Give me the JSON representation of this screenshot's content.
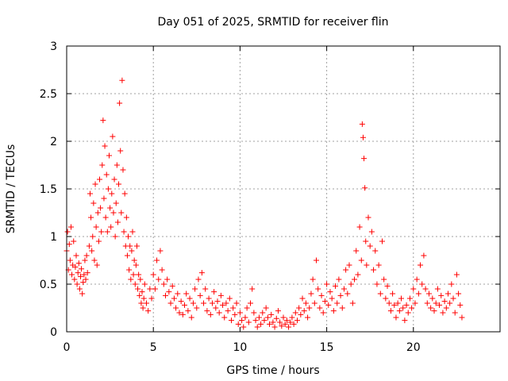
{
  "chart_data": {
    "type": "scatter",
    "title": "Day 051 of 2025, SRMTID for receiver flin",
    "xlabel": "GPS time / hours",
    "ylabel": "SRMTID / TECUs",
    "xlim": [
      0,
      25
    ],
    "ylim": [
      0,
      3
    ],
    "xticks": [
      0,
      5,
      10,
      15,
      20
    ],
    "yticks": [
      0,
      0.5,
      1,
      1.5,
      2,
      2.5,
      3
    ],
    "xtick_labels": [
      "0",
      "5",
      "10",
      "15",
      "20"
    ],
    "ytick_labels": [
      "0",
      "0.5",
      "1",
      "1.5",
      "2",
      "2.5",
      "3"
    ],
    "grid": true,
    "marker": "+",
    "color": "#ff0000",
    "series": [
      {
        "name": "SRMTID",
        "points": [
          [
            0.0,
            0.85
          ],
          [
            0.05,
            1.05
          ],
          [
            0.1,
            0.65
          ],
          [
            0.15,
            0.92
          ],
          [
            0.2,
            0.75
          ],
          [
            0.25,
            1.1
          ],
          [
            0.3,
            0.6
          ],
          [
            0.35,
            0.7
          ],
          [
            0.4,
            0.95
          ],
          [
            0.45,
            0.55
          ],
          [
            0.5,
            0.68
          ],
          [
            0.55,
            0.8
          ],
          [
            0.6,
            0.5
          ],
          [
            0.65,
            0.62
          ],
          [
            0.7,
            0.72
          ],
          [
            0.75,
            0.45
          ],
          [
            0.8,
            0.58
          ],
          [
            0.85,
            0.66
          ],
          [
            0.9,
            0.4
          ],
          [
            0.95,
            0.52
          ],
          [
            1.0,
            0.6
          ],
          [
            1.05,
            0.75
          ],
          [
            1.1,
            0.55
          ],
          [
            1.15,
            0.8
          ],
          [
            1.2,
            0.62
          ],
          [
            1.3,
            0.9
          ],
          [
            1.35,
            1.45
          ],
          [
            1.4,
            1.2
          ],
          [
            1.45,
            0.85
          ],
          [
            1.5,
            1.0
          ],
          [
            1.55,
            1.35
          ],
          [
            1.6,
            0.75
          ],
          [
            1.65,
            1.55
          ],
          [
            1.7,
            1.1
          ],
          [
            1.75,
            0.7
          ],
          [
            1.8,
            1.25
          ],
          [
            1.85,
            0.95
          ],
          [
            1.9,
            1.6
          ],
          [
            1.95,
            1.3
          ],
          [
            2.0,
            1.05
          ],
          [
            2.05,
            1.75
          ],
          [
            2.1,
            2.22
          ],
          [
            2.15,
            1.4
          ],
          [
            2.2,
            1.95
          ],
          [
            2.25,
            1.2
          ],
          [
            2.3,
            1.65
          ],
          [
            2.35,
            1.05
          ],
          [
            2.4,
            1.5
          ],
          [
            2.45,
            1.85
          ],
          [
            2.5,
            1.3
          ],
          [
            2.55,
            1.1
          ],
          [
            2.6,
            1.45
          ],
          [
            2.65,
            2.05
          ],
          [
            2.7,
            1.25
          ],
          [
            2.75,
            1.6
          ],
          [
            2.8,
            1.0
          ],
          [
            2.85,
            1.35
          ],
          [
            2.9,
            1.75
          ],
          [
            2.95,
            1.15
          ],
          [
            3.0,
            1.55
          ],
          [
            3.05,
            2.4
          ],
          [
            3.1,
            1.9
          ],
          [
            3.15,
            1.25
          ],
          [
            3.2,
            2.64
          ],
          [
            3.25,
            1.7
          ],
          [
            3.3,
            1.05
          ],
          [
            3.35,
            1.45
          ],
          [
            3.4,
            0.9
          ],
          [
            3.45,
            1.2
          ],
          [
            3.5,
            0.8
          ],
          [
            3.55,
            1.0
          ],
          [
            3.6,
            0.65
          ],
          [
            3.65,
            0.9
          ],
          [
            3.7,
            0.55
          ],
          [
            3.75,
            0.85
          ],
          [
            3.8,
            1.05
          ],
          [
            3.85,
            0.6
          ],
          [
            3.9,
            0.75
          ],
          [
            3.95,
            0.5
          ],
          [
            4.0,
            0.7
          ],
          [
            4.05,
            0.9
          ],
          [
            4.1,
            0.45
          ],
          [
            4.15,
            0.6
          ],
          [
            4.2,
            0.38
          ],
          [
            4.25,
            0.55
          ],
          [
            4.3,
            0.3
          ],
          [
            4.35,
            0.42
          ],
          [
            4.4,
            0.25
          ],
          [
            4.45,
            0.35
          ],
          [
            4.5,
            0.5
          ],
          [
            4.6,
            0.3
          ],
          [
            4.7,
            0.22
          ],
          [
            4.8,
            0.45
          ],
          [
            4.9,
            0.35
          ],
          [
            5.0,
            0.6
          ],
          [
            5.1,
            0.45
          ],
          [
            5.2,
            0.75
          ],
          [
            5.3,
            0.55
          ],
          [
            5.4,
            0.85
          ],
          [
            5.5,
            0.65
          ],
          [
            5.6,
            0.5
          ],
          [
            5.7,
            0.38
          ],
          [
            5.8,
            0.55
          ],
          [
            5.9,
            0.42
          ],
          [
            6.0,
            0.3
          ],
          [
            6.1,
            0.48
          ],
          [
            6.2,
            0.35
          ],
          [
            6.3,
            0.25
          ],
          [
            6.4,
            0.4
          ],
          [
            6.5,
            0.2
          ],
          [
            6.6,
            0.32
          ],
          [
            6.7,
            0.18
          ],
          [
            6.8,
            0.28
          ],
          [
            6.9,
            0.4
          ],
          [
            7.0,
            0.22
          ],
          [
            7.1,
            0.35
          ],
          [
            7.2,
            0.15
          ],
          [
            7.3,
            0.3
          ],
          [
            7.4,
            0.45
          ],
          [
            7.5,
            0.25
          ],
          [
            7.6,
            0.55
          ],
          [
            7.7,
            0.38
          ],
          [
            7.8,
            0.62
          ],
          [
            7.9,
            0.3
          ],
          [
            8.0,
            0.45
          ],
          [
            8.1,
            0.22
          ],
          [
            8.2,
            0.35
          ],
          [
            8.3,
            0.18
          ],
          [
            8.4,
            0.3
          ],
          [
            8.5,
            0.42
          ],
          [
            8.6,
            0.25
          ],
          [
            8.7,
            0.32
          ],
          [
            8.8,
            0.2
          ],
          [
            8.9,
            0.38
          ],
          [
            9.0,
            0.28
          ],
          [
            9.1,
            0.15
          ],
          [
            9.2,
            0.3
          ],
          [
            9.3,
            0.22
          ],
          [
            9.4,
            0.35
          ],
          [
            9.5,
            0.12
          ],
          [
            9.6,
            0.25
          ],
          [
            9.7,
            0.18
          ],
          [
            9.8,
            0.3
          ],
          [
            9.9,
            0.08
          ],
          [
            10.0,
            0.2
          ],
          [
            10.1,
            0.12
          ],
          [
            10.2,
            0.05
          ],
          [
            10.3,
            0.15
          ],
          [
            10.4,
            0.25
          ],
          [
            10.5,
            0.1
          ],
          [
            10.6,
            0.3
          ],
          [
            10.7,
            0.45
          ],
          [
            10.8,
            0.2
          ],
          [
            10.9,
            0.12
          ],
          [
            11.0,
            0.05
          ],
          [
            11.1,
            0.15
          ],
          [
            11.2,
            0.08
          ],
          [
            11.3,
            0.2
          ],
          [
            11.4,
            0.12
          ],
          [
            11.5,
            0.25
          ],
          [
            11.6,
            0.15
          ],
          [
            11.7,
            0.08
          ],
          [
            11.8,
            0.18
          ],
          [
            11.9,
            0.1
          ],
          [
            12.0,
            0.05
          ],
          [
            12.1,
            0.14
          ],
          [
            12.2,
            0.22
          ],
          [
            12.3,
            0.1
          ],
          [
            12.4,
            0.06
          ],
          [
            12.5,
            0.15
          ],
          [
            12.6,
            0.08
          ],
          [
            12.7,
            0.12
          ],
          [
            12.8,
            0.05
          ],
          [
            12.9,
            0.1
          ],
          [
            13.0,
            0.15
          ],
          [
            13.1,
            0.08
          ],
          [
            13.2,
            0.2
          ],
          [
            13.3,
            0.12
          ],
          [
            13.4,
            0.25
          ],
          [
            13.5,
            0.18
          ],
          [
            13.6,
            0.35
          ],
          [
            13.7,
            0.22
          ],
          [
            13.8,
            0.3
          ],
          [
            13.9,
            0.15
          ],
          [
            14.0,
            0.25
          ],
          [
            14.1,
            0.4
          ],
          [
            14.2,
            0.55
          ],
          [
            14.3,
            0.3
          ],
          [
            14.4,
            0.75
          ],
          [
            14.5,
            0.45
          ],
          [
            14.6,
            0.25
          ],
          [
            14.7,
            0.38
          ],
          [
            14.8,
            0.2
          ],
          [
            14.9,
            0.32
          ],
          [
            15.0,
            0.5
          ],
          [
            15.1,
            0.28
          ],
          [
            15.2,
            0.42
          ],
          [
            15.3,
            0.35
          ],
          [
            15.4,
            0.22
          ],
          [
            15.5,
            0.48
          ],
          [
            15.6,
            0.3
          ],
          [
            15.7,
            0.55
          ],
          [
            15.8,
            0.38
          ],
          [
            15.9,
            0.25
          ],
          [
            16.0,
            0.45
          ],
          [
            16.1,
            0.65
          ],
          [
            16.2,
            0.4
          ],
          [
            16.3,
            0.7
          ],
          [
            16.4,
            0.5
          ],
          [
            16.5,
            0.3
          ],
          [
            16.6,
            0.55
          ],
          [
            16.7,
            0.85
          ],
          [
            16.8,
            0.6
          ],
          [
            16.9,
            1.1
          ],
          [
            17.0,
            0.75
          ],
          [
            17.05,
            2.18
          ],
          [
            17.1,
            2.04
          ],
          [
            17.15,
            1.82
          ],
          [
            17.2,
            1.51
          ],
          [
            17.25,
            0.95
          ],
          [
            17.3,
            0.7
          ],
          [
            17.4,
            1.2
          ],
          [
            17.5,
            0.9
          ],
          [
            17.6,
            1.05
          ],
          [
            17.7,
            0.65
          ],
          [
            17.8,
            0.85
          ],
          [
            17.9,
            0.5
          ],
          [
            18.0,
            0.7
          ],
          [
            18.1,
            0.4
          ],
          [
            18.2,
            0.95
          ],
          [
            18.3,
            0.55
          ],
          [
            18.4,
            0.35
          ],
          [
            18.5,
            0.48
          ],
          [
            18.6,
            0.3
          ],
          [
            18.7,
            0.22
          ],
          [
            18.8,
            0.4
          ],
          [
            18.9,
            0.28
          ],
          [
            19.0,
            0.15
          ],
          [
            19.1,
            0.3
          ],
          [
            19.2,
            0.22
          ],
          [
            19.3,
            0.35
          ],
          [
            19.4,
            0.25
          ],
          [
            19.5,
            0.12
          ],
          [
            19.6,
            0.28
          ],
          [
            19.7,
            0.2
          ],
          [
            19.8,
            0.35
          ],
          [
            19.9,
            0.25
          ],
          [
            20.0,
            0.45
          ],
          [
            20.1,
            0.3
          ],
          [
            20.2,
            0.55
          ],
          [
            20.3,
            0.4
          ],
          [
            20.4,
            0.7
          ],
          [
            20.5,
            0.5
          ],
          [
            20.6,
            0.8
          ],
          [
            20.7,
            0.45
          ],
          [
            20.8,
            0.3
          ],
          [
            20.9,
            0.4
          ],
          [
            21.0,
            0.25
          ],
          [
            21.1,
            0.35
          ],
          [
            21.2,
            0.22
          ],
          [
            21.3,
            0.3
          ],
          [
            21.4,
            0.45
          ],
          [
            21.5,
            0.28
          ],
          [
            21.6,
            0.38
          ],
          [
            21.7,
            0.2
          ],
          [
            21.8,
            0.32
          ],
          [
            21.9,
            0.25
          ],
          [
            22.0,
            0.4
          ],
          [
            22.1,
            0.3
          ],
          [
            22.2,
            0.5
          ],
          [
            22.3,
            0.35
          ],
          [
            22.4,
            0.2
          ],
          [
            22.5,
            0.6
          ],
          [
            22.6,
            0.4
          ],
          [
            22.7,
            0.28
          ],
          [
            22.8,
            0.15
          ]
        ]
      }
    ]
  }
}
